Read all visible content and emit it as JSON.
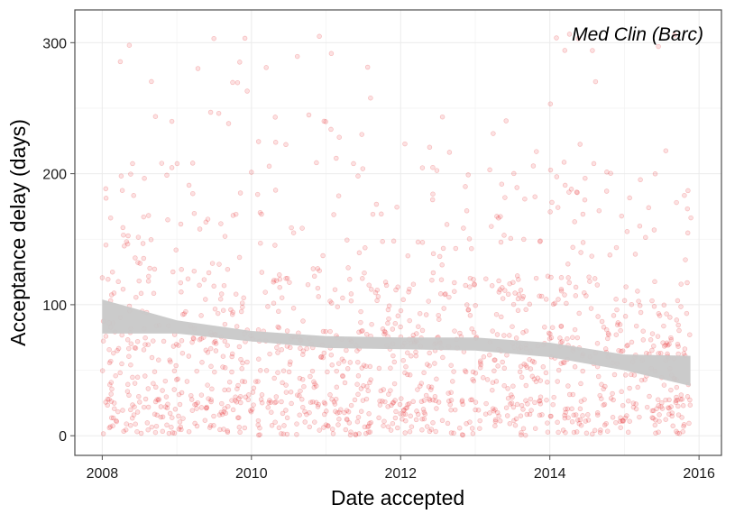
{
  "chart_data": {
    "type": "scatter",
    "title": "",
    "annotation": "Med Clin (Barc)",
    "xlabel": "Date accepted",
    "ylabel": "Acceptance delay (days)",
    "x_ticks": [
      "2008",
      "2010",
      "2012",
      "2014",
      "2016"
    ],
    "y_ticks": [
      "0",
      "100",
      "200",
      "300"
    ],
    "xlim": [
      "2007-08-20",
      "2016-04-20"
    ],
    "ylim": [
      -15,
      325
    ],
    "grid": true,
    "legend": "none",
    "point_count": 1400,
    "point_color": "#e41a1c",
    "point_opacity": 0.25,
    "smooth": {
      "type": "loess",
      "color": "#c8c8c8",
      "x": [
        "2008-01-01",
        "2009-01-01",
        "2010-01-01",
        "2011-01-01",
        "2012-01-01",
        "2013-01-01",
        "2014-01-01",
        "2015-01-01",
        "2015-11-20"
      ],
      "upper": [
        104,
        88,
        80,
        76,
        75,
        75,
        71,
        62,
        61
      ],
      "lower": [
        78,
        78,
        72,
        67,
        66,
        65,
        60,
        50,
        38
      ]
    }
  }
}
